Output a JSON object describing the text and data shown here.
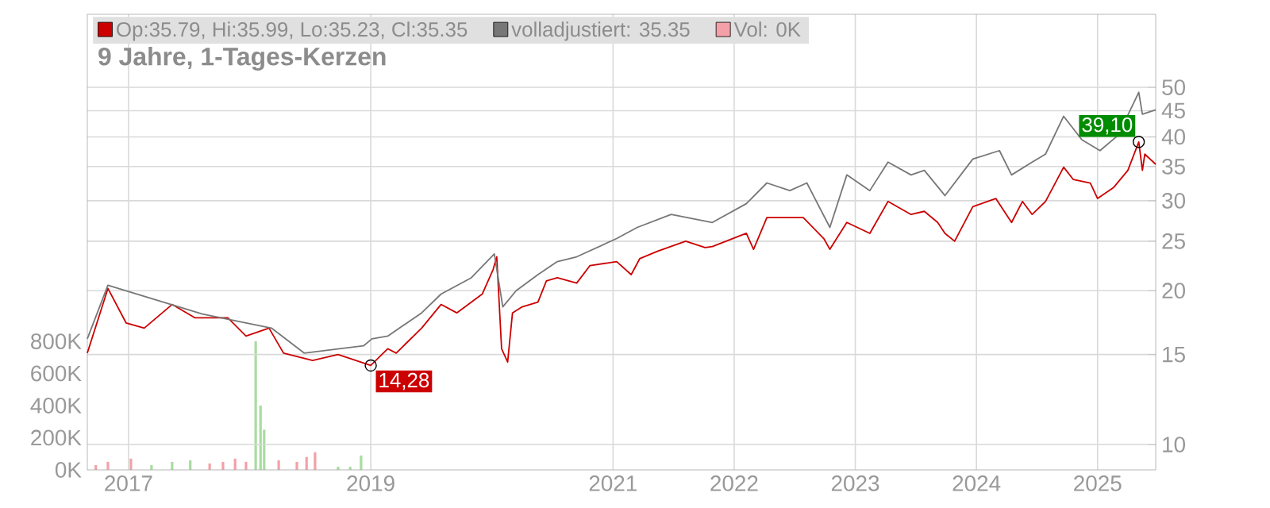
{
  "chart_data": {
    "type": "line",
    "title": "9 Jahre, 1-Tages-Kerzen",
    "xlim": [
      2016.66,
      2025.48
    ],
    "xticks": [
      2017,
      2019,
      2021,
      2022,
      2023,
      2024,
      2025
    ],
    "ylim": [
      8.92,
      69.5
    ],
    "yticks": [
      10,
      15,
      20,
      25,
      30,
      35,
      40,
      45,
      50
    ],
    "log": "y",
    "y2lim": [
      0,
      2835000
    ],
    "y2ticks": [
      {
        "value": 0,
        "label": "0K"
      },
      {
        "value": 200000,
        "label": "200K"
      },
      {
        "value": 400000,
        "label": "400K"
      },
      {
        "value": 600000,
        "label": "600K"
      },
      {
        "value": 800000,
        "label": "800K"
      }
    ],
    "grid": true,
    "legend": "top",
    "marker": "none",
    "line_style": "solid",
    "annotations": [
      {
        "text": "14,28",
        "x": 2019.0,
        "y": 14.28
      },
      {
        "text": "39,10",
        "x": 2025.34,
        "y": 39.1
      }
    ],
    "series": [
      {
        "name": "Op:35.79, Hi:35.99, Lo:35.23, Cl:35.35",
        "color": "#cc0000",
        "x": [
          2016.66,
          2016.83,
          2016.98,
          2017.13,
          2017.36,
          2017.55,
          2017.82,
          2017.97,
          2018.16,
          2018.28,
          2018.52,
          2018.73,
          2019.0,
          2019.14,
          2019.21,
          2019.42,
          2019.58,
          2019.71,
          2019.92,
          2020.01,
          2020.04,
          2020.08,
          2020.13,
          2020.17,
          2020.25,
          2020.38,
          2020.45,
          2020.54,
          2020.7,
          2020.81,
          2021.03,
          2021.15,
          2021.22,
          2021.37,
          2021.6,
          2021.76,
          2021.82,
          2022.1,
          2022.16,
          2022.27,
          2022.41,
          2022.57,
          2022.74,
          2022.79,
          2022.93,
          2023.12,
          2023.27,
          2023.46,
          2023.57,
          2023.68,
          2023.74,
          2023.82,
          2023.97,
          2024.16,
          2024.29,
          2024.38,
          2024.46,
          2024.57,
          2024.72,
          2024.8,
          2024.94,
          2025.0,
          2025.13,
          2025.25,
          2025.34,
          2025.37,
          2025.39,
          2025.48
        ],
        "values": [
          15.1,
          20.2,
          17.3,
          16.9,
          18.8,
          17.7,
          17.7,
          16.3,
          16.9,
          15.1,
          14.6,
          15.0,
          14.28,
          15.4,
          15.1,
          16.9,
          18.8,
          18.1,
          19.7,
          22.0,
          23.3,
          15.4,
          14.5,
          18.1,
          18.6,
          19.0,
          20.9,
          21.2,
          20.7,
          22.4,
          22.8,
          21.5,
          23.1,
          23.9,
          25.0,
          24.3,
          24.4,
          25.9,
          24.1,
          27.8,
          27.8,
          27.8,
          25.3,
          24.1,
          27.2,
          25.9,
          29.9,
          28.2,
          28.6,
          27.2,
          25.9,
          25.0,
          29.2,
          30.3,
          27.2,
          29.9,
          28.2,
          29.9,
          34.9,
          33.0,
          32.5,
          30.3,
          31.8,
          34.4,
          39.1,
          34.4,
          37.0,
          35.35
        ]
      },
      {
        "name": "volladjustiert: 35.35",
        "color": "#777777",
        "x": [
          2016.66,
          2016.83,
          2017.61,
          2018.18,
          2018.45,
          2018.94,
          2019.01,
          2019.14,
          2019.42,
          2019.58,
          2019.83,
          2020.02,
          2020.09,
          2020.2,
          2020.38,
          2020.54,
          2020.7,
          2021.03,
          2021.2,
          2021.48,
          2021.82,
          2022.1,
          2022.27,
          2022.46,
          2022.6,
          2022.79,
          2022.93,
          2023.12,
          2023.27,
          2023.46,
          2023.57,
          2023.74,
          2023.97,
          2024.19,
          2024.29,
          2024.46,
          2024.57,
          2024.72,
          2024.87,
          2025.02,
          2025.17,
          2025.34,
          2025.37,
          2025.48
        ],
        "values": [
          16.1,
          20.5,
          18.0,
          16.9,
          15.1,
          15.6,
          16.1,
          16.3,
          18.1,
          19.7,
          21.2,
          23.6,
          18.6,
          20.0,
          21.5,
          22.8,
          23.3,
          25.3,
          26.6,
          28.2,
          27.2,
          29.6,
          32.5,
          31.4,
          32.5,
          26.6,
          33.7,
          31.4,
          35.7,
          33.7,
          34.4,
          30.7,
          36.2,
          37.6,
          33.7,
          35.7,
          37.0,
          43.9,
          39.5,
          37.6,
          40.3,
          48.9,
          44.3,
          45.2
        ]
      },
      {
        "name": "Vol: 0K",
        "type": "bar",
        "axis": "y2",
        "color": "#f4a0a8",
        "x": [
          2016.73,
          2016.83,
          2017.02,
          2017.19,
          2017.36,
          2017.51,
          2017.67,
          2017.78,
          2017.88,
          2017.97,
          2018.05,
          2018.09,
          2018.12,
          2018.24,
          2018.39,
          2018.47,
          2018.54,
          2018.73,
          2018.83,
          2018.92
        ],
        "values": [
          30000,
          50000,
          70000,
          30000,
          50000,
          60000,
          40000,
          50000,
          70000,
          50000,
          800000,
          400000,
          250000,
          60000,
          50000,
          80000,
          110000,
          20000,
          20000,
          90000
        ],
        "colors": [
          "#f4a0a8",
          "#f4a0a8",
          "#f4a0a8",
          "#a8dca0",
          "#a8dca0",
          "#a8dca0",
          "#f4a0a8",
          "#f4a0a8",
          "#f4a0a8",
          "#f4a0a8",
          "#a8dca0",
          "#a8dca0",
          "#a8dca0",
          "#f4a0a8",
          "#f4a0a8",
          "#f4a0a8",
          "#f4a0a8",
          "#a8dca0",
          "#a8dca0",
          "#a8dca0"
        ]
      }
    ]
  }
}
